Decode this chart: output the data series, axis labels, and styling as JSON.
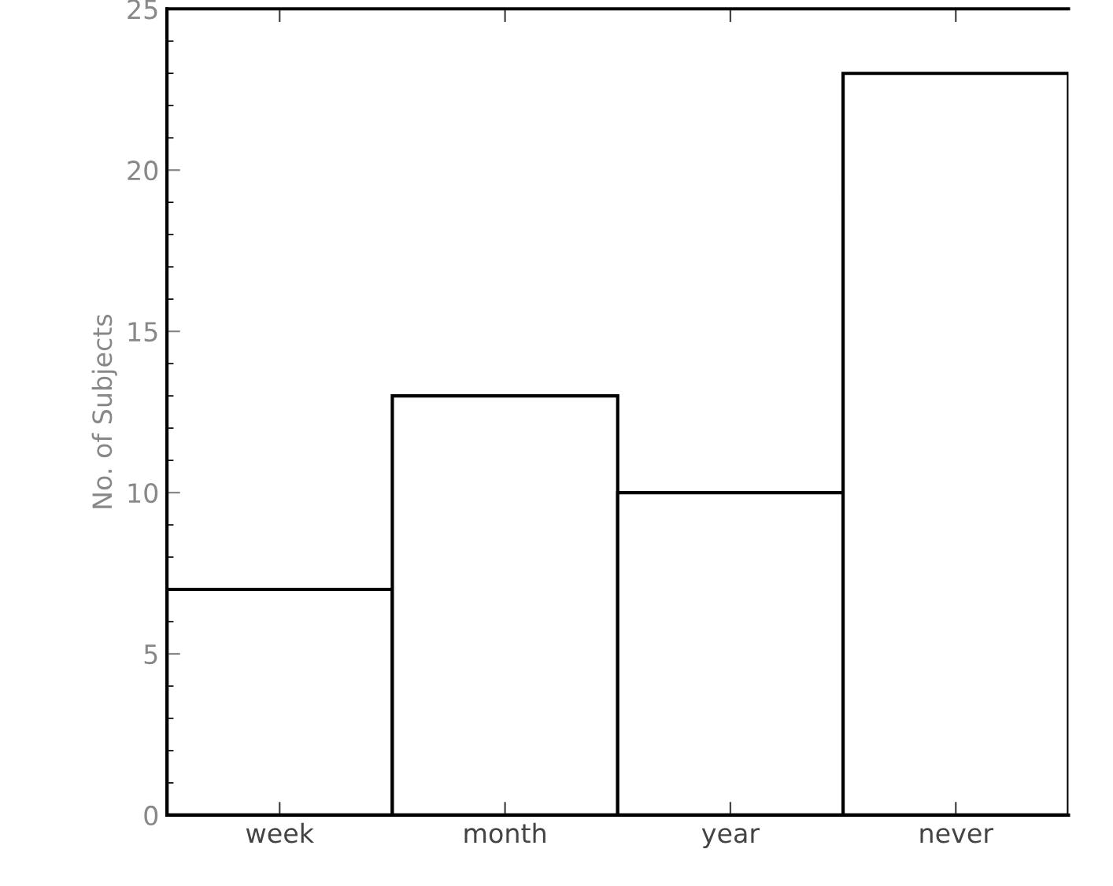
{
  "chart_data": {
    "type": "bar",
    "ylabel": "No. of Subjects",
    "categories": [
      "week",
      "month",
      "year",
      "never"
    ],
    "values": [
      7,
      13,
      10,
      23
    ],
    "color": "#ffffff",
    "ylim": [
      0,
      25
    ],
    "yticks": [
      0,
      5,
      10,
      15,
      20,
      25
    ],
    "grid": false
  }
}
